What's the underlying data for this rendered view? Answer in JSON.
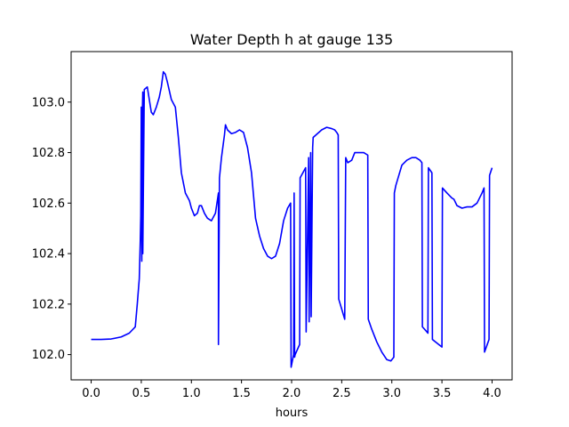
{
  "chart_data": {
    "type": "line",
    "title": "Water Depth h at gauge 135",
    "xlabel": "hours",
    "ylabel": "",
    "xlim": [
      -0.2,
      4.2
    ],
    "ylim": [
      101.9,
      103.2
    ],
    "xticks": [
      0.0,
      0.5,
      1.0,
      1.5,
      2.0,
      2.5,
      3.0,
      3.5,
      4.0
    ],
    "yticks": [
      102.0,
      102.2,
      102.4,
      102.6,
      102.8,
      103.0
    ],
    "xtick_labels": [
      "0.0",
      "0.5",
      "1.0",
      "1.5",
      "2.0",
      "2.5",
      "3.0",
      "3.5",
      "4.0"
    ],
    "ytick_labels": [
      "102.0",
      "102.2",
      "102.4",
      "102.6",
      "102.8",
      "103.0"
    ],
    "grid": false,
    "series": [
      {
        "color": "#0000ff",
        "x": [
          0.0,
          0.1,
          0.2,
          0.3,
          0.38,
          0.44,
          0.46,
          0.48,
          0.49,
          0.495,
          0.5,
          0.505,
          0.505,
          0.51,
          0.515,
          0.515,
          0.53,
          0.56,
          0.6,
          0.62,
          0.65,
          0.68,
          0.7,
          0.72,
          0.74,
          0.76,
          0.8,
          0.84,
          0.87,
          0.9,
          0.94,
          0.98,
          1.0,
          1.03,
          1.06,
          1.08,
          1.1,
          1.13,
          1.16,
          1.2,
          1.24,
          1.27,
          1.27,
          1.28,
          1.3,
          1.33,
          1.34,
          1.36,
          1.4,
          1.44,
          1.48,
          1.52,
          1.56,
          1.6,
          1.64,
          1.68,
          1.72,
          1.76,
          1.8,
          1.84,
          1.88,
          1.92,
          1.96,
          1.99,
          1.995,
          2.02,
          2.025,
          2.03,
          2.035,
          2.08,
          2.085,
          2.14,
          2.145,
          2.17,
          2.175,
          2.19,
          2.195,
          2.21,
          2.215,
          2.3,
          2.35,
          2.4,
          2.43,
          2.45,
          2.465,
          2.47,
          2.5,
          2.53,
          2.54,
          2.56,
          2.6,
          2.63,
          2.66,
          2.72,
          2.76,
          2.765,
          2.8,
          2.85,
          2.9,
          2.95,
          2.99,
          3.02,
          3.025,
          3.04,
          3.07,
          3.1,
          3.15,
          3.2,
          3.24,
          3.28,
          3.3,
          3.305,
          3.35,
          3.36,
          3.365,
          3.4,
          3.405,
          3.5,
          3.505,
          3.55,
          3.6,
          3.62,
          3.65,
          3.7,
          3.75,
          3.8,
          3.85,
          3.9,
          3.92,
          3.925,
          3.97,
          3.975,
          4.0
        ],
        "y": [
          102.06,
          102.06,
          102.062,
          102.07,
          102.085,
          102.11,
          102.2,
          102.3,
          102.45,
          102.55,
          102.98,
          102.4,
          102.37,
          102.95,
          103.04,
          102.4,
          103.05,
          103.06,
          102.96,
          102.95,
          102.98,
          103.02,
          103.06,
          103.12,
          103.11,
          103.08,
          103.01,
          102.98,
          102.86,
          102.72,
          102.64,
          102.61,
          102.58,
          102.55,
          102.56,
          102.59,
          102.59,
          102.56,
          102.54,
          102.53,
          102.56,
          102.64,
          102.04,
          102.7,
          102.78,
          102.87,
          102.91,
          102.89,
          102.875,
          102.88,
          102.89,
          102.88,
          102.82,
          102.72,
          102.54,
          102.47,
          102.42,
          102.39,
          102.38,
          102.39,
          102.44,
          102.53,
          102.58,
          102.6,
          101.95,
          102.0,
          102.64,
          101.99,
          102.0,
          102.04,
          102.7,
          102.74,
          102.09,
          102.78,
          102.13,
          102.8,
          102.15,
          102.82,
          102.86,
          102.89,
          102.9,
          102.895,
          102.89,
          102.88,
          102.87,
          102.22,
          102.18,
          102.14,
          102.78,
          102.76,
          102.77,
          102.8,
          102.8,
          102.8,
          102.79,
          102.14,
          102.1,
          102.05,
          102.01,
          101.98,
          101.975,
          101.99,
          102.64,
          102.67,
          102.71,
          102.75,
          102.77,
          102.78,
          102.78,
          102.77,
          102.76,
          102.11,
          102.09,
          102.085,
          102.74,
          102.72,
          102.06,
          102.03,
          102.66,
          102.64,
          102.62,
          102.615,
          102.59,
          102.58,
          102.585,
          102.585,
          102.6,
          102.64,
          102.66,
          102.01,
          102.06,
          102.71,
          102.74
        ]
      }
    ]
  }
}
